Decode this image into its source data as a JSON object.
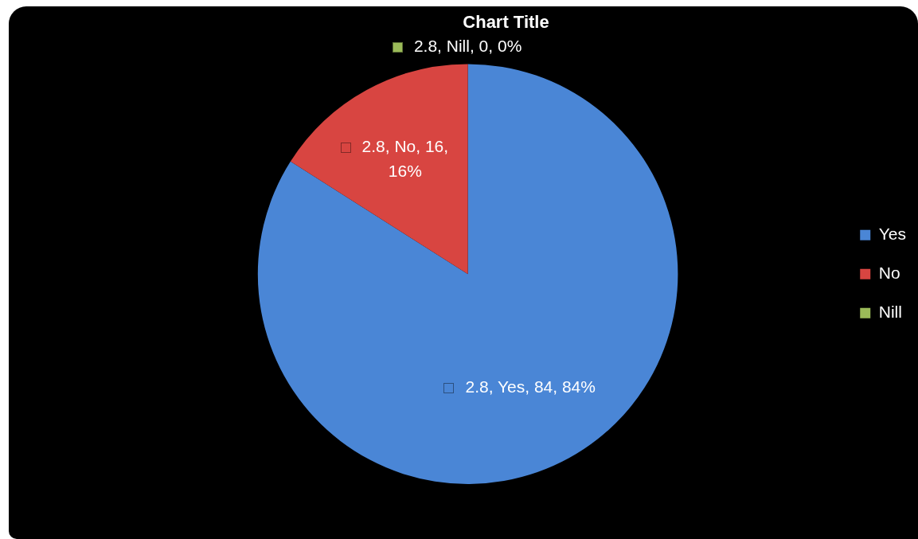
{
  "chart_data": {
    "type": "pie",
    "title": "Chart Title",
    "categories": [
      "Yes",
      "No",
      "Nill"
    ],
    "values": [
      84,
      16,
      0
    ],
    "colors": [
      "#4a86d6",
      "#d84541",
      "#9bbb59"
    ],
    "value_labels": [
      "2.8, Yes, 84, 84%",
      "2.8, No, 16, 16%",
      "2.8, Nill, 0, 0%"
    ],
    "legend": "right"
  }
}
